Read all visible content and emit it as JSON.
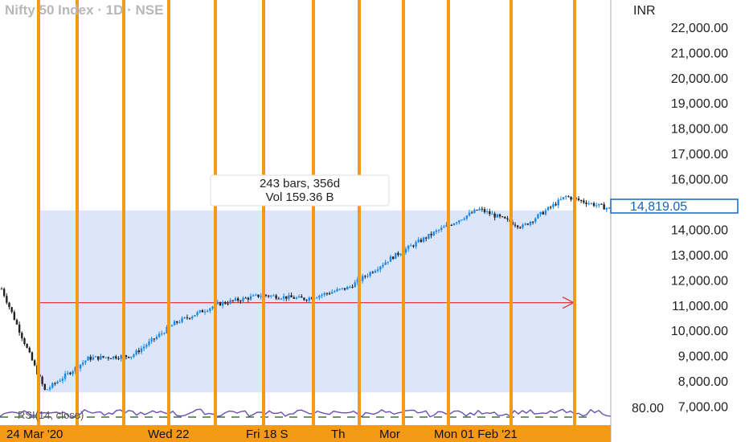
{
  "header": {
    "title": "Nifty 50 Index · 1D · NSE",
    "currency": "INR"
  },
  "colors": {
    "vline": "#f59a17",
    "range_box": "#dbe6fb",
    "arrow": "#e53935",
    "candle_up": "#1e88e5",
    "candle_down": "#222222",
    "rsi_line": "#6a4fb3",
    "price_tag": "#1565c0",
    "date_bar": "#f59a17"
  },
  "range_tooltip": {
    "bars_line": "243 bars, 356d",
    "volume_line": "Vol 159.36 B"
  },
  "current_price": "14,819.05",
  "rsi_label": "RSI(14, close)",
  "rsi_axis_label": "80.00",
  "date_labels": [
    "24 Mar '20",
    "Wed 22",
    "Fri 18 S",
    "Th",
    "Mor",
    "Mon 01 Feb '21"
  ],
  "chart_data": {
    "type": "candlestick",
    "y_axis": {
      "ticks": [
        "22,000.00",
        "21,000.00",
        "20,000.00",
        "19,000.00",
        "18,000.00",
        "17,000.00",
        "16,000.00",
        "15,000.00",
        "14,000.00",
        "13,000.00",
        "12,000.00",
        "11,000.00",
        "10,000.00",
        "9,000.00",
        "8,000.00",
        "7,000.00"
      ],
      "min": 6700,
      "max": 22600
    },
    "range_box": {
      "top_value": 14750,
      "bottom_value": 7550
    },
    "arrow_level": 11100,
    "series": [
      {
        "date": "2020-02",
        "close": 11650
      },
      {
        "date": "2020-03-24",
        "close": 7610
      },
      {
        "date": "2020-04",
        "close": 8900
      },
      {
        "date": "2020-05",
        "close": 9000
      },
      {
        "date": "2020-06",
        "close": 10300
      },
      {
        "date": "2020-07",
        "close": 11050
      },
      {
        "date": "2020-08",
        "close": 11400
      },
      {
        "date": "2020-09",
        "close": 11250
      },
      {
        "date": "2020-10",
        "close": 11700
      },
      {
        "date": "2020-11",
        "close": 12900
      },
      {
        "date": "2020-12",
        "close": 13900
      },
      {
        "date": "2021-01",
        "close": 14800
      },
      {
        "date": "2021-02-01",
        "close": 14100
      },
      {
        "date": "2021-02",
        "close": 15300
      },
      {
        "date": "2021-03",
        "close": 14820
      }
    ]
  }
}
